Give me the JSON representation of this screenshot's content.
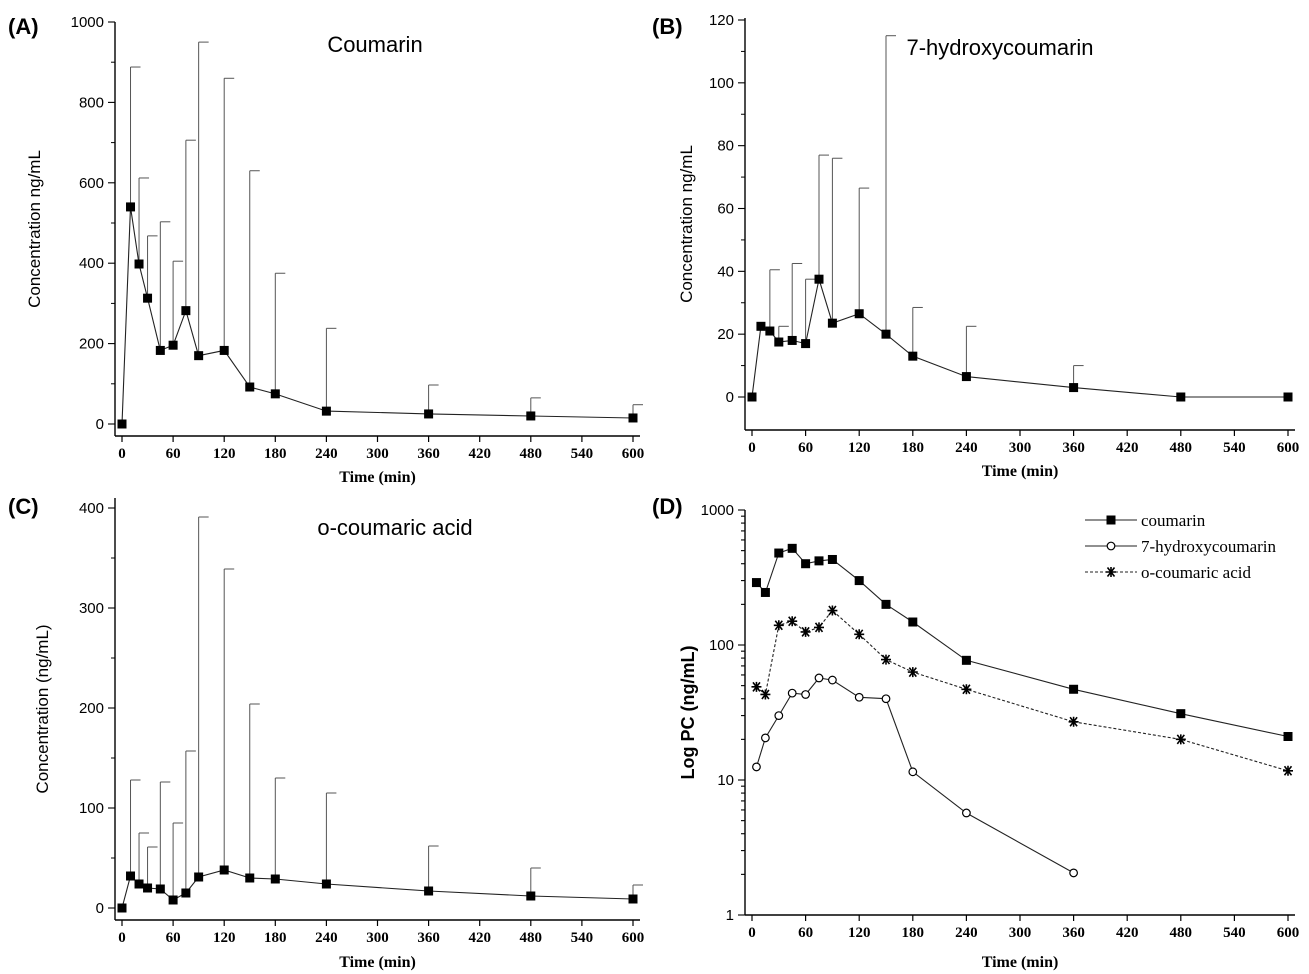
{
  "chart_data": [
    {
      "panel": "(A)",
      "type": "line",
      "title": "Coumarin",
      "xlabel": "Time (min)",
      "ylabel": "Concentration ng/mL",
      "xlim": [
        0,
        600
      ],
      "ylim": [
        0,
        1000
      ],
      "xticks": [
        0,
        60,
        120,
        180,
        240,
        300,
        360,
        420,
        480,
        540,
        600
      ],
      "yticks": [
        0,
        200,
        400,
        600,
        800,
        1000
      ],
      "y_scale": "linear",
      "marker": "filled-square",
      "error_bars": "upper",
      "x": [
        0,
        10,
        20,
        30,
        45,
        60,
        75,
        90,
        120,
        150,
        180,
        240,
        360,
        480,
        600
      ],
      "y": [
        0,
        540,
        398,
        313,
        183,
        196,
        282,
        170,
        183,
        92,
        75,
        32,
        25,
        20,
        15
      ],
      "y_err_upper": [
        0,
        888,
        612,
        468,
        503,
        405,
        706,
        950,
        860,
        630,
        375,
        238,
        97,
        65,
        48
      ]
    },
    {
      "panel": "(B)",
      "type": "line",
      "title": "7-hydroxycoumarin",
      "xlabel": "Time (min)",
      "ylabel": "Concentration ng/mL",
      "xlim": [
        0,
        600
      ],
      "ylim": [
        -10,
        120
      ],
      "xticks": [
        0,
        60,
        120,
        180,
        240,
        300,
        360,
        420,
        480,
        540,
        600
      ],
      "yticks": [
        0,
        20,
        40,
        60,
        80,
        100,
        120
      ],
      "y_scale": "linear",
      "marker": "filled-square",
      "error_bars": "upper",
      "x": [
        0,
        10,
        20,
        30,
        45,
        60,
        75,
        90,
        120,
        150,
        180,
        240,
        360,
        480,
        600
      ],
      "y": [
        0,
        22.5,
        21,
        17.5,
        18,
        17,
        37.5,
        23.5,
        26.5,
        20,
        13,
        6.5,
        3,
        0,
        0
      ],
      "y_err_upper": [
        0,
        22.5,
        40.5,
        22.5,
        42.5,
        37.5,
        77,
        76,
        66.5,
        115,
        28.5,
        22.5,
        10,
        0,
        0
      ]
    },
    {
      "panel": "(C)",
      "type": "line",
      "title": "o-coumaric acid",
      "xlabel": "Time (min)",
      "ylabel": "Concentration (ng/mL)",
      "xlim": [
        0,
        600
      ],
      "ylim": [
        0,
        410
      ],
      "xticks": [
        0,
        60,
        120,
        180,
        240,
        300,
        360,
        420,
        480,
        540,
        600
      ],
      "yticks": [
        0,
        100,
        200,
        300,
        400
      ],
      "y_scale": "linear",
      "marker": "filled-square",
      "error_bars": "upper",
      "x": [
        0,
        10,
        20,
        30,
        45,
        60,
        75,
        90,
        120,
        150,
        180,
        240,
        360,
        480,
        600
      ],
      "y": [
        0,
        32,
        24,
        20,
        19,
        8,
        15,
        31,
        38,
        30,
        29,
        24,
        17,
        12,
        9
      ],
      "y_err_upper": [
        0,
        128,
        75,
        61,
        126,
        85,
        157,
        391,
        339,
        204,
        130,
        115,
        62,
        40,
        23
      ]
    },
    {
      "panel": "(D)",
      "type": "line",
      "title": "",
      "xlabel": "Time (min)",
      "ylabel": "Log PC (ng/mL)",
      "xlim": [
        0,
        600
      ],
      "ylim": [
        1,
        1000
      ],
      "xticks": [
        0,
        60,
        120,
        180,
        240,
        300,
        360,
        420,
        480,
        540,
        600
      ],
      "yticks": [
        1,
        10,
        100,
        1000
      ],
      "y_scale": "log",
      "legend_position": "top-right",
      "series": [
        {
          "name": "coumarin",
          "marker": "filled-square",
          "line": "solid",
          "x": [
            5,
            15,
            30,
            45,
            60,
            75,
            90,
            120,
            150,
            180,
            240,
            360,
            480,
            600
          ],
          "y": [
            290,
            245,
            480,
            520,
            400,
            420,
            430,
            300,
            200,
            148,
            77,
            47,
            31,
            21
          ]
        },
        {
          "name": "7-hydroxycoumarin",
          "marker": "open-circle",
          "line": "solid",
          "x": [
            5,
            15,
            30,
            45,
            60,
            75,
            90,
            120,
            150,
            180,
            240,
            360
          ],
          "y": [
            12.5,
            20.5,
            30,
            44,
            43,
            57,
            55,
            41,
            40,
            11.5,
            5.7,
            2.05
          ]
        },
        {
          "name": "o-coumaric acid",
          "marker": "asterisk",
          "line": "dotted",
          "x": [
            5,
            15,
            30,
            45,
            60,
            75,
            90,
            120,
            150,
            180,
            240,
            360,
            480,
            600
          ],
          "y": [
            49,
            43,
            140,
            150,
            125,
            135,
            180,
            120,
            78,
            63,
            47,
            27,
            20,
            11.7
          ]
        }
      ]
    }
  ]
}
